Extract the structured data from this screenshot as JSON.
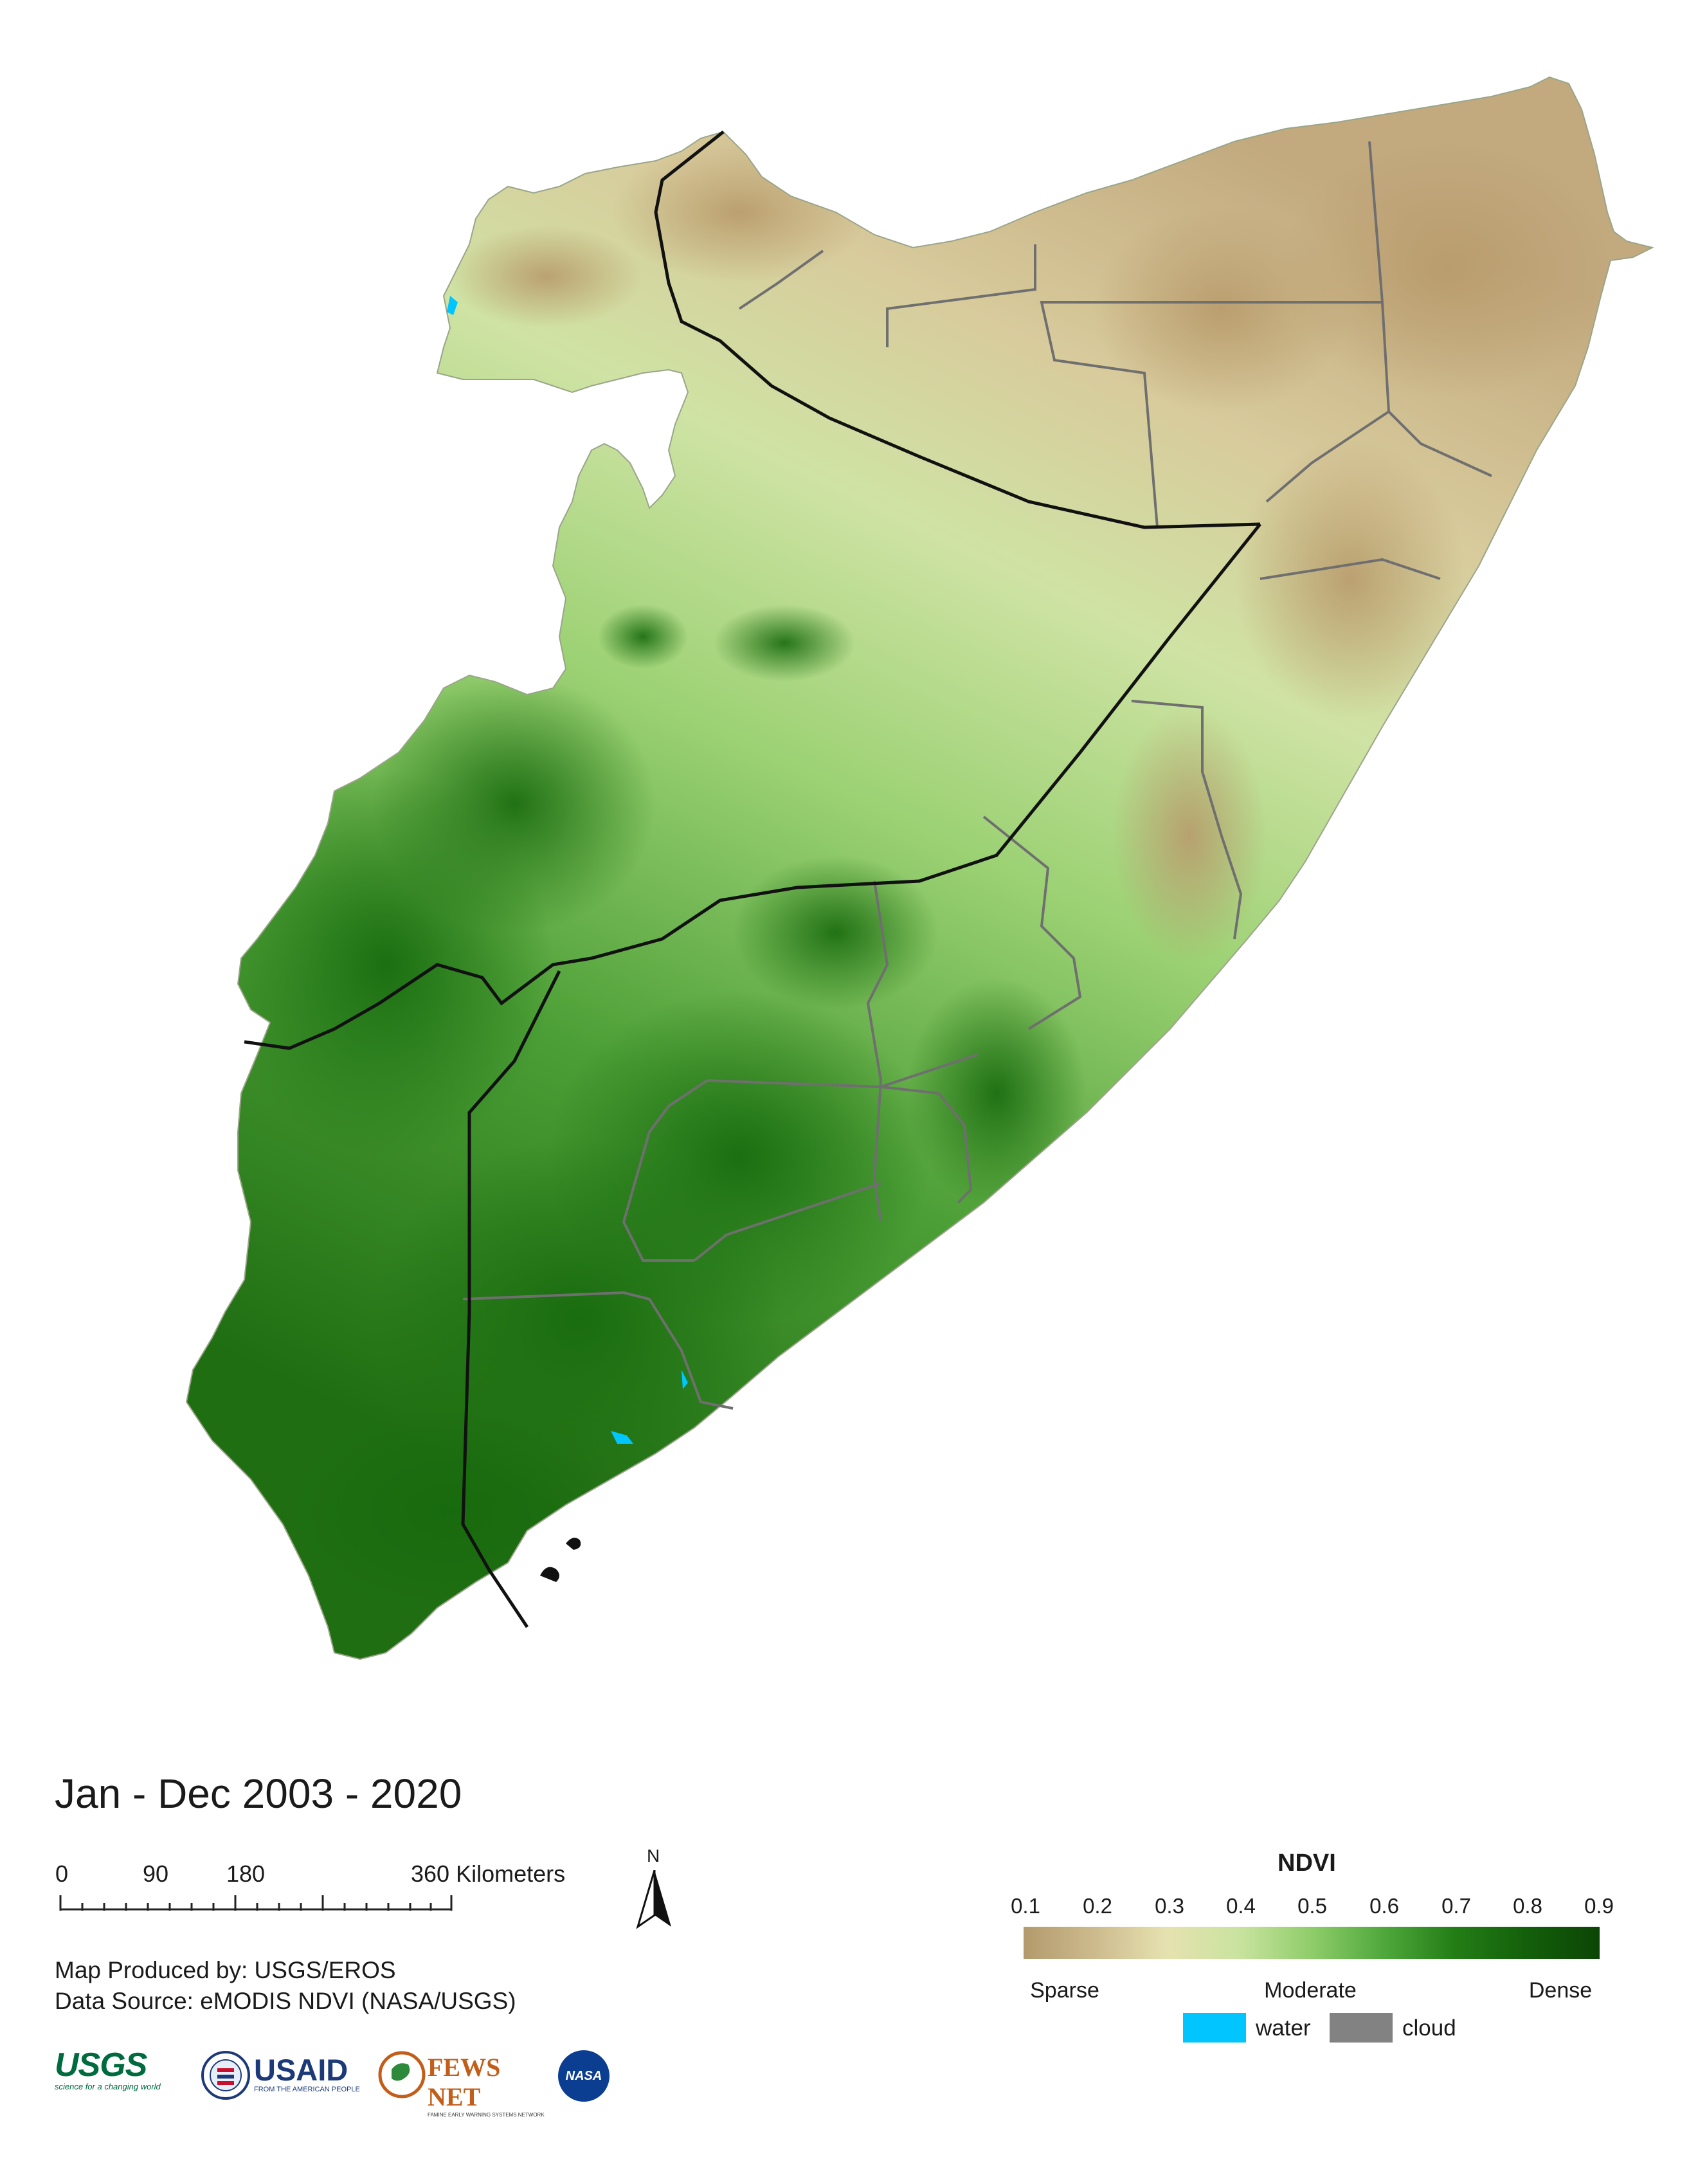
{
  "title": "Jan - Dec 2003 - 2020",
  "scale_bar": {
    "labels": [
      "0",
      "90",
      "180",
      "360 Kilometers"
    ]
  },
  "north_arrow": {
    "label": "N",
    "icon": "north-arrow-icon"
  },
  "credits": {
    "produced_by": "Map Produced by: USGS/EROS",
    "data_source": "Data Source: eMODIS NDVI (NASA/USGS)"
  },
  "legend": {
    "title": "NDVI",
    "ticks": [
      "0.1",
      "0.2",
      "0.3",
      "0.4",
      "0.5",
      "0.6",
      "0.7",
      "0.8",
      "0.9"
    ],
    "classes": [
      "Sparse",
      "Moderate",
      "Dense"
    ],
    "colors": [
      "#b39a6d",
      "#cdbb8e",
      "#e6e2b0",
      "#c9e39f",
      "#8fcd6a",
      "#4fa83b",
      "#237d16",
      "#135f0a",
      "#0c4506"
    ],
    "water": {
      "label": "water",
      "color": "#00c5ff"
    },
    "cloud": {
      "label": "cloud",
      "color": "#828282"
    }
  },
  "logos": {
    "usgs": {
      "text": "USGS",
      "tagline": "science for a changing world"
    },
    "usaid": {
      "text": "USAID",
      "tagline": "FROM THE AMERICAN PEOPLE"
    },
    "fewsnet": {
      "text": "FEWS NET",
      "tagline": "FAMINE EARLY WARNING SYSTEMS NETWORK"
    },
    "nasa": {
      "text": "NASA"
    }
  }
}
